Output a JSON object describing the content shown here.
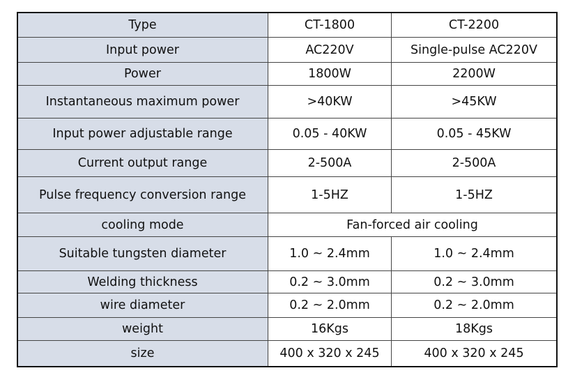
{
  "table": {
    "rows": [
      [
        "Type",
        "CT-1800",
        "CT-2200"
      ],
      [
        "Input power",
        "AC220V",
        "Single-pulse AC220V"
      ],
      [
        "Power",
        "1800W",
        "2200W"
      ],
      [
        "Instantaneous maximum power",
        ">40KW",
        ">45KW"
      ],
      [
        "Input power adjustable range",
        "0.05 - 40KW",
        "0.05 - 45KW"
      ],
      [
        "Current output range",
        "2-500A",
        "2-500A"
      ],
      [
        "Pulse frequency conversion range",
        "1-5HZ",
        "1-5HZ"
      ],
      [
        "cooling mode",
        "Fan-forced air cooling"
      ],
      [
        "Suitable tungsten diameter",
        "1.0 ~ 2.4mm",
        "1.0 ~ 2.4mm"
      ],
      [
        "Welding thickness",
        "0.2 ~ 3.0mm",
        "0.2 ~ 3.0mm"
      ],
      [
        "wire diameter",
        "0.2 ~ 2.0mm",
        "0.2 ~ 2.0mm"
      ],
      [
        "weight",
        "16Kgs",
        "18Kgs"
      ],
      [
        "size",
        "400 x 320 x 245",
        "400 x 320 x 245"
      ]
    ]
  }
}
